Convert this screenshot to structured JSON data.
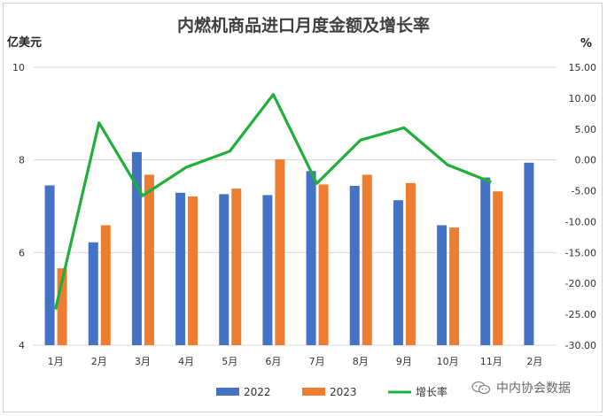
{
  "chart_data": {
    "type": "bar+line",
    "title": "内燃机商品进口月度金额及增长率",
    "left_axis_unit": "亿美元",
    "right_axis_unit": "%",
    "categories": [
      "1月",
      "2月",
      "3月",
      "4月",
      "5月",
      "6月",
      "7月",
      "8月",
      "9月",
      "10月",
      "11月",
      "2月"
    ],
    "ylim_left": [
      4,
      10
    ],
    "yticks_left": [
      "4",
      "6",
      "8",
      "10"
    ],
    "ylim_right": [
      -30,
      15
    ],
    "yticks_right": [
      "15.00",
      "10.00",
      "5.00",
      "0.00",
      "-5.00",
      "-10.00",
      "-15.00",
      "-20.00",
      "-25.00",
      "-30.00"
    ],
    "series": [
      {
        "name": "2022",
        "kind": "bar",
        "color": "#4472C4",
        "values": [
          7.45,
          6.22,
          8.17,
          7.29,
          7.26,
          7.24,
          7.76,
          7.44,
          7.13,
          6.59,
          7.62,
          7.94
        ]
      },
      {
        "name": "2023",
        "kind": "bar",
        "color": "#ED7D31",
        "values": [
          5.66,
          6.59,
          7.68,
          7.21,
          7.38,
          8.01,
          7.47,
          7.68,
          7.5,
          6.54,
          7.32,
          null
        ]
      },
      {
        "name": "增长率",
        "kind": "line",
        "axis": "right",
        "color": "#1FAF3A",
        "values": [
          -24.2,
          6.0,
          -5.8,
          -1.2,
          1.4,
          10.6,
          -3.8,
          3.2,
          5.2,
          -0.8,
          -3.6,
          null
        ]
      }
    ],
    "legend_position": "bottom",
    "grid": true
  },
  "watermark": {
    "text": "中内协会数据",
    "icon": "wechat-icon"
  }
}
